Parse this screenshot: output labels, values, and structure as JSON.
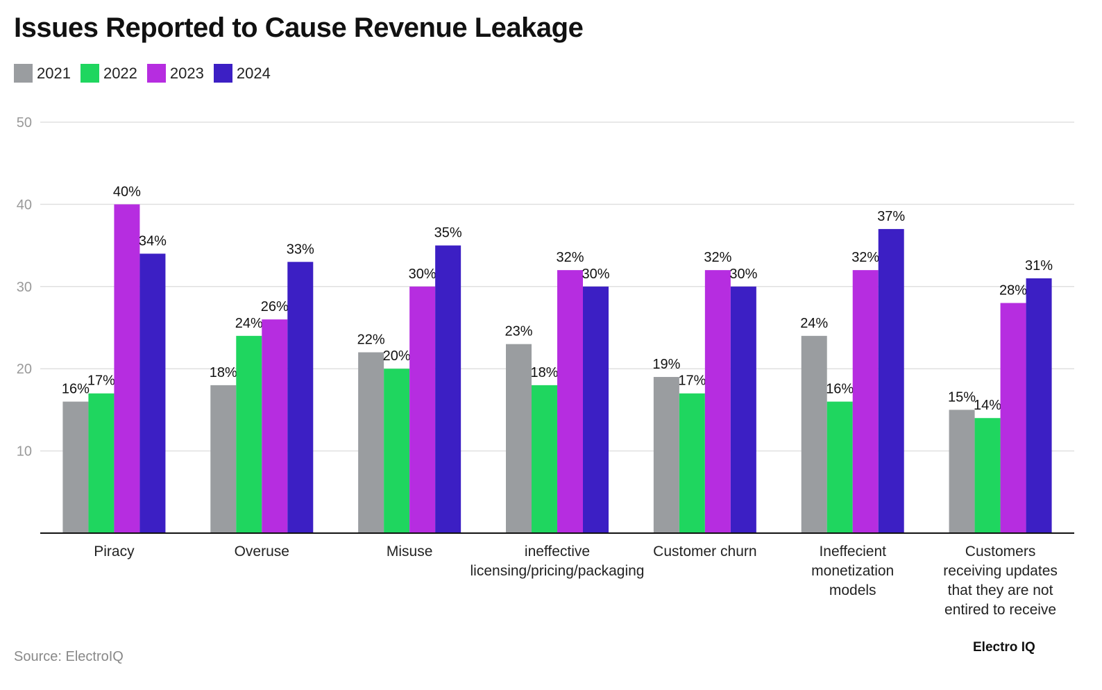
{
  "chart_data": {
    "type": "bar",
    "title": "Issues Reported to Cause Revenue Leakage",
    "categories": [
      [
        "Piracy"
      ],
      [
        "Overuse"
      ],
      [
        "Misuse"
      ],
      [
        "ineffective",
        "licensing/pricing/packaging"
      ],
      [
        "Customer churn"
      ],
      [
        "Ineffecient",
        "monetization",
        "models"
      ],
      [
        "Customers",
        "receiving updates",
        "that they are not",
        "entired to receive"
      ]
    ],
    "series": [
      {
        "name": "2021",
        "color": "#9a9da0",
        "values": [
          16,
          18,
          22,
          23,
          19,
          24,
          15
        ]
      },
      {
        "name": "2022",
        "color": "#1fd65f",
        "values": [
          17,
          24,
          20,
          18,
          17,
          16,
          14
        ]
      },
      {
        "name": "2023",
        "color": "#b62de0",
        "values": [
          40,
          26,
          30,
          32,
          32,
          32,
          28
        ]
      },
      {
        "name": "2024",
        "color": "#3c1fc4",
        "values": [
          34,
          33,
          35,
          30,
          30,
          37,
          31
        ]
      }
    ],
    "value_suffix": "%",
    "yticks": [
      10,
      20,
      30,
      40,
      50
    ],
    "ylim": [
      0,
      50
    ],
    "grid": true,
    "legend": "top-left",
    "xlabel": "",
    "ylabel": ""
  },
  "source": "Source: ElectroIQ",
  "logo": "Electro IQ"
}
